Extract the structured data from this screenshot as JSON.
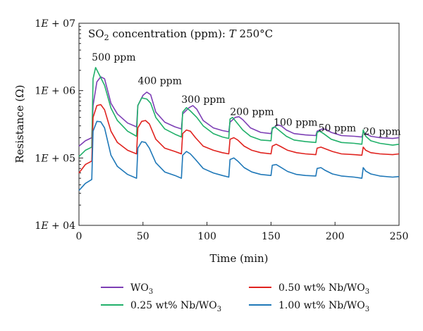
{
  "chart_data": {
    "type": "line",
    "title": "SO2 concentration (ppm): T 250°C",
    "title_parts": {
      "pre": "SO",
      "sub": "2",
      "post": " concentration (ppm): ",
      "ital": "T",
      "tail": " 250°C"
    },
    "xlabel": "Time (min)",
    "ylabel": "Resistance (Ω)",
    "xlim": [
      0,
      250
    ],
    "ylim": [
      10000,
      10000000
    ],
    "yscale": "log",
    "xticks": [
      0,
      50,
      100,
      150,
      200,
      250
    ],
    "xtick_labels": [
      "0",
      "50",
      "100",
      "150",
      "200",
      "250"
    ],
    "yticks": [
      10000,
      100000,
      1000000,
      10000000
    ],
    "ytick_labels": [
      "1E + 04",
      "1E + 05",
      "1E + 06",
      "1E + 07"
    ],
    "grid": false,
    "legend_position": "bottom",
    "annotations": [
      {
        "text": "500 ppm",
        "x": 10,
        "y": 2800000
      },
      {
        "text": "400 ppm",
        "x": 46,
        "y": 1250000
      },
      {
        "text": "300 ppm",
        "x": 80,
        "y": 660000
      },
      {
        "text": "200 ppm",
        "x": 118,
        "y": 430000
      },
      {
        "text": "100 ppm",
        "x": 152,
        "y": 300000
      },
      {
        "text": "50 ppm",
        "x": 187,
        "y": 250000
      },
      {
        "text": "20 ppm",
        "x": 222,
        "y": 220000
      }
    ],
    "series": [
      {
        "name": "WO3",
        "label_base": "WO",
        "label_sub": "3",
        "color": "#7d3fb5",
        "x": [
          0,
          5,
          10,
          11,
          14,
          17,
          20,
          25,
          30,
          38,
          45,
          46,
          50,
          53,
          56,
          60,
          67,
          75,
          80,
          81,
          86,
          89,
          92,
          97,
          105,
          112,
          117,
          118,
          122,
          125,
          128,
          134,
          142,
          150,
          151,
          155,
          158,
          162,
          168,
          177,
          185,
          186,
          190,
          193,
          197,
          205,
          215,
          221,
          222,
          225,
          228,
          235,
          245,
          250
        ],
        "y": [
          150000,
          180000,
          200000,
          600000,
          1350000,
          1600000,
          1500000,
          650000,
          450000,
          330000,
          290000,
          600000,
          850000,
          950000,
          870000,
          480000,
          340000,
          290000,
          270000,
          450000,
          560000,
          600000,
          530000,
          360000,
          280000,
          255000,
          245000,
          340000,
          400000,
          410000,
          370000,
          280000,
          240000,
          230000,
          270000,
          310000,
          300000,
          260000,
          230000,
          220000,
          215000,
          250000,
          270000,
          265000,
          240000,
          215000,
          210000,
          205000,
          240000,
          225000,
          210000,
          200000,
          195000,
          200000
        ]
      },
      {
        "name": "0.25 wt% Nb/WO3",
        "label_base": "0.25 wt% Nb/WO",
        "label_sub": "3",
        "color": "#21b06a",
        "x": [
          0,
          5,
          10,
          11,
          13,
          16,
          20,
          25,
          30,
          38,
          45,
          46,
          49,
          53,
          56,
          60,
          67,
          75,
          80,
          81,
          84,
          87,
          92,
          97,
          105,
          112,
          117,
          118,
          120,
          123,
          128,
          134,
          142,
          150,
          151,
          153,
          156,
          162,
          168,
          177,
          185,
          186,
          188,
          191,
          197,
          205,
          215,
          221,
          222,
          224,
          228,
          235,
          245,
          250
        ],
        "y": [
          105000,
          130000,
          145000,
          1500000,
          2200000,
          1700000,
          1200000,
          550000,
          360000,
          250000,
          210000,
          600000,
          780000,
          750000,
          650000,
          400000,
          270000,
          225000,
          205000,
          480000,
          560000,
          500000,
          400000,
          300000,
          230000,
          205000,
          195000,
          380000,
          400000,
          340000,
          260000,
          210000,
          185000,
          180000,
          280000,
          290000,
          260000,
          210000,
          185000,
          175000,
          170000,
          240000,
          250000,
          230000,
          190000,
          170000,
          165000,
          160000,
          260000,
          210000,
          180000,
          165000,
          155000,
          160000
        ]
      },
      {
        "name": "0.50 wt% Nb/WO3",
        "label_base": "0.50 wt% Nb/WO",
        "label_sub": "3",
        "color": "#e0231f",
        "x": [
          0,
          5,
          10,
          11,
          14,
          17,
          20,
          25,
          30,
          38,
          45,
          46,
          49,
          52,
          55,
          60,
          67,
          75,
          80,
          81,
          84,
          87,
          91,
          97,
          105,
          112,
          117,
          118,
          121,
          124,
          129,
          135,
          142,
          150,
          151,
          154,
          157,
          163,
          170,
          177,
          185,
          186,
          189,
          192,
          198,
          205,
          215,
          221,
          222,
          224,
          228,
          235,
          245,
          250
        ],
        "y": [
          60000,
          80000,
          90000,
          400000,
          600000,
          620000,
          520000,
          250000,
          170000,
          130000,
          115000,
          280000,
          350000,
          360000,
          320000,
          190000,
          140000,
          125000,
          115000,
          230000,
          260000,
          250000,
          200000,
          150000,
          130000,
          120000,
          115000,
          190000,
          200000,
          185000,
          150000,
          130000,
          120000,
          115000,
          150000,
          160000,
          150000,
          130000,
          120000,
          115000,
          112000,
          140000,
          145000,
          138000,
          125000,
          115000,
          112000,
          110000,
          145000,
          130000,
          120000,
          115000,
          112000,
          115000
        ]
      },
      {
        "name": "1.00 wt% Nb/WO3",
        "label_base": "1.00 wt% Nb/WO",
        "label_sub": "3",
        "color": "#1f78b8",
        "x": [
          0,
          5,
          10,
          11,
          14,
          17,
          20,
          25,
          30,
          38,
          45,
          46,
          49,
          52,
          55,
          60,
          67,
          75,
          80,
          81,
          84,
          87,
          91,
          97,
          105,
          112,
          117,
          118,
          121,
          124,
          129,
          135,
          142,
          150,
          151,
          154,
          157,
          163,
          170,
          177,
          185,
          186,
          189,
          192,
          198,
          205,
          215,
          221,
          222,
          224,
          228,
          235,
          245,
          250
        ],
        "y": [
          33000,
          42000,
          48000,
          250000,
          350000,
          345000,
          280000,
          110000,
          75000,
          57000,
          50000,
          140000,
          175000,
          170000,
          140000,
          85000,
          62000,
          55000,
          50000,
          110000,
          125000,
          115000,
          95000,
          70000,
          60000,
          55000,
          52000,
          95000,
          100000,
          90000,
          72000,
          62000,
          57000,
          55000,
          78000,
          80000,
          74000,
          63000,
          57000,
          55000,
          54000,
          70000,
          72000,
          66000,
          58000,
          54000,
          52000,
          50000,
          72000,
          64000,
          58000,
          54000,
          52000,
          53000
        ]
      }
    ]
  }
}
